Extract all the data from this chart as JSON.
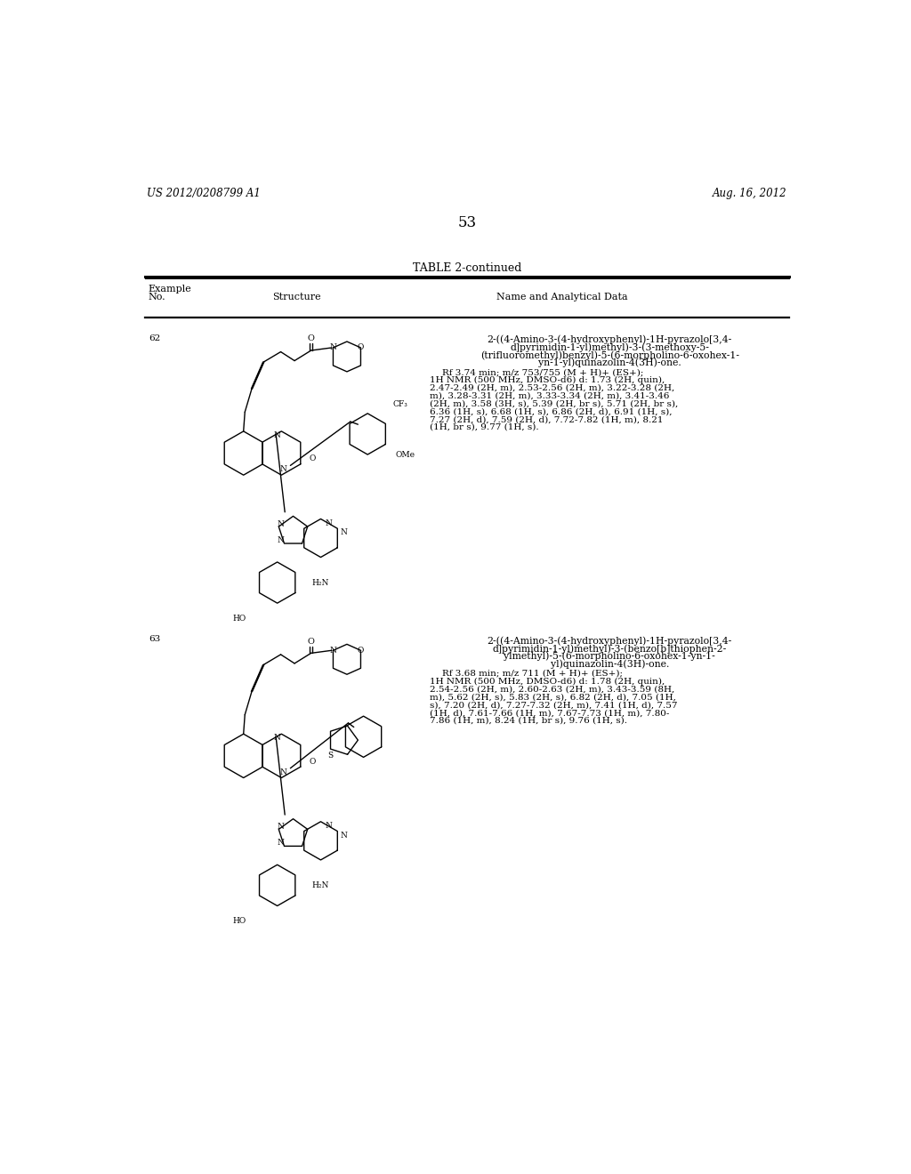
{
  "page_header_left": "US 2012/0208799 A1",
  "page_header_right": "Aug. 16, 2012",
  "page_number": "53",
  "table_title": "TABLE 2-continued",
  "col1_header_line1": "Example",
  "col1_header_line2": "No.",
  "col2_header": "Structure",
  "col3_header": "Name and Analytical Data",
  "background_color": "#ffffff",
  "text_color": "#000000",
  "entry62_no": "62",
  "entry62_name_lines": [
    "2-((4-Amino-3-(4-hydroxyphenyl)-1H-pyrazolo[3,4-",
    "d]pyrimidin-1-yl)methyl)-3-(3-methoxy-5-",
    "(trifluoromethyl)benzyl)-5-(6-morpholino-6-oxohex-1-",
    "yn-1-yl)quinazolin-4(3H)-one."
  ],
  "entry62_data_lines": [
    "Rf 3.74 min; m/z 753/755 (M + H)+ (ES+);",
    "1H NMR (500 MHz, DMSO-d6) d: 1.73 (2H, quin),",
    "2.47-2.49 (2H, m), 2.53-2.56 (2H, m), 3.22-3.28 (2H,",
    "m), 3.28-3.31 (2H, m), 3.33-3.34 (2H, m), 3.41-3.46",
    "(2H, m), 3.58 (3H, s), 5.39 (2H, br s), 5.71 (2H, br s),",
    "6.36 (1H, s), 6.68 (1H, s), 6.86 (2H, d), 6.91 (1H, s),",
    "7.27 (2H, d), 7.59 (2H, d), 7.72-7.82 (1H, m), 8.21",
    "(1H, br s), 9.77 (1H, s)."
  ],
  "entry63_no": "63",
  "entry63_name_lines": [
    "2-((4-Amino-3-(4-hydroxyphenyl)-1H-pyrazolo[3,4-",
    "d]pyrimidin-1-yl)methyl)-3-(benzo[b]thiophen-2-",
    "ylmethyl)-5-(6-morpholino-6-oxohex-1-yn-1-",
    "yl)quinazolin-4(3H)-one."
  ],
  "entry63_data_lines": [
    "Rf 3.68 min; m/z 711 (M + H)+ (ES+);",
    "1H NMR (500 MHz, DMSO-d6) d: 1.78 (2H, quin),",
    "2.54-2.56 (2H, m), 2.60-2.63 (2H, m), 3.43-3.59 (8H,",
    "m), 5.62 (2H, s), 5.83 (2H, s), 6.82 (2H, d), 7.05 (1H,",
    "s), 7.20 (2H, d), 7.27-7.32 (2H, m), 7.41 (1H, d), 7.57",
    "(1H, d), 7.61-7.66 (1H, m), 7.67-7.73 (1H, m), 7.80-",
    "7.86 (1H, m), 8.24 (1H, br s), 9.76 (1H, s)."
  ],
  "header_font_size": 8,
  "body_font_size": 7.5,
  "name_font_size": 7.8,
  "title_font_size": 9,
  "page_num_font_size": 12,
  "header_lr_font_size": 8.5,
  "struct_lw": 1.0
}
